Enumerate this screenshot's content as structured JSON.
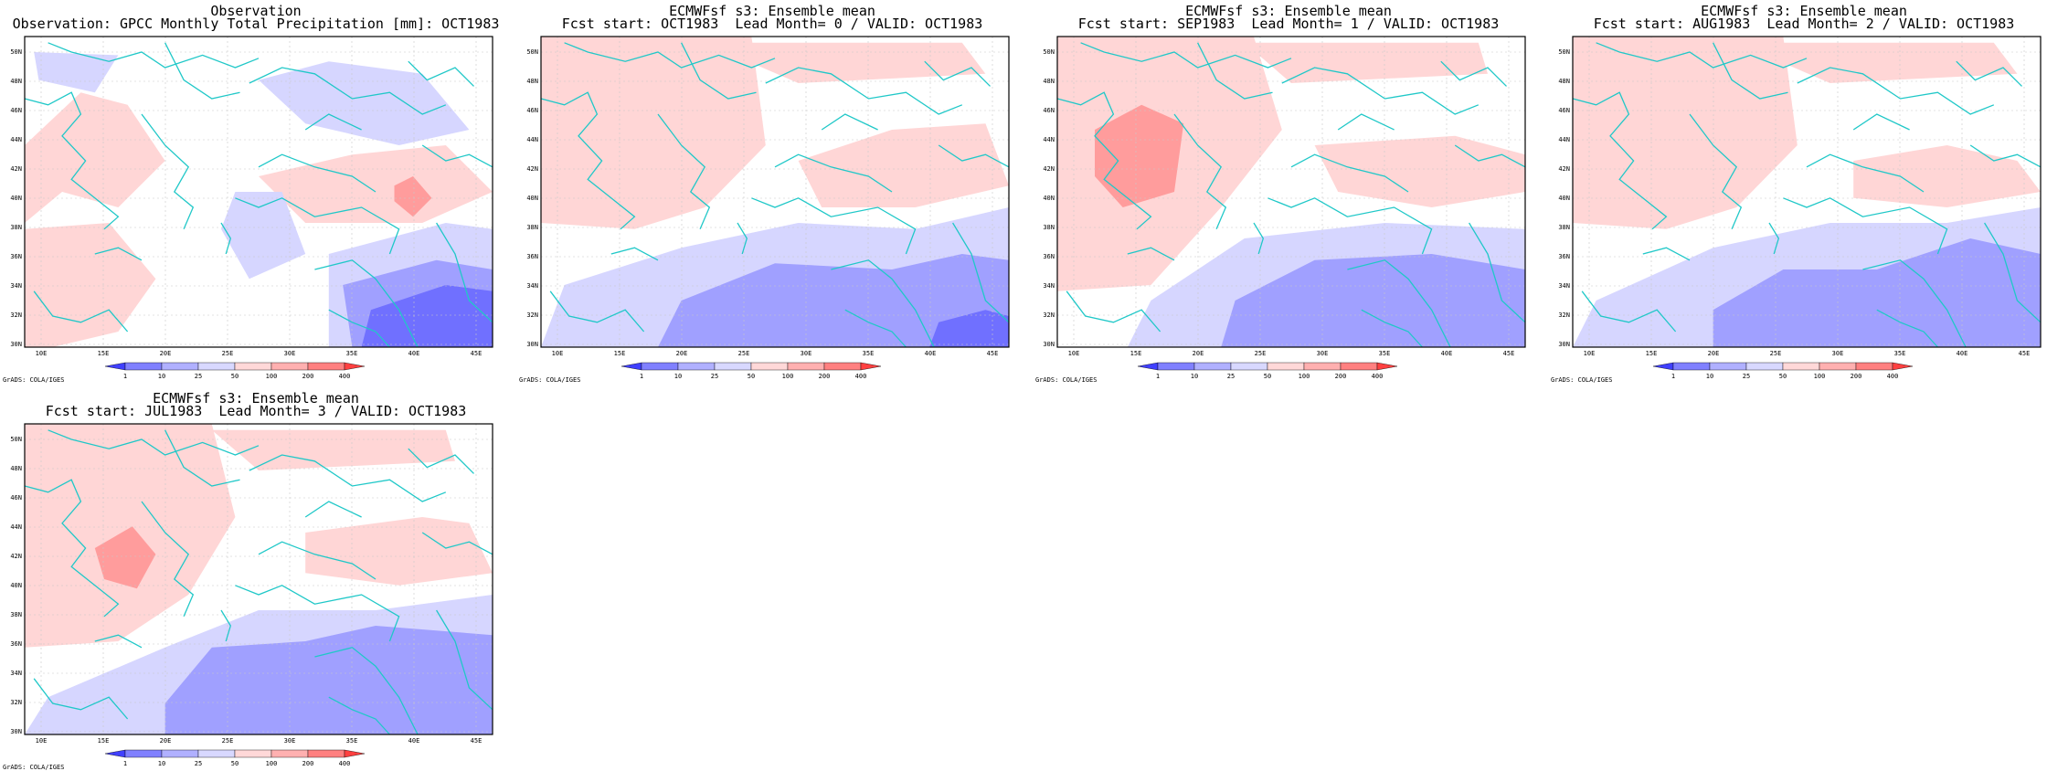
{
  "panels": [
    {
      "title1": "Observation",
      "title2": "Observation: GPCC Monthly Total Precipitation [mm]: OCT1983",
      "variant": "obs"
    },
    {
      "title1": "ECMWFsf s3: Ensemble mean",
      "title2": "Fcst start: OCT1983  Lead Month= 0 / VALID: OCT1983",
      "variant": "lead0"
    },
    {
      "title1": "ECMWFsf s3: Ensemble mean",
      "title2": "Fcst start: SEP1983  Lead Month= 1 / VALID: OCT1983",
      "variant": "lead1"
    },
    {
      "title1": "ECMWFsf s3: Ensemble mean",
      "title2": "Fcst start: AUG1983  Lead Month= 2 / VALID: OCT1983",
      "variant": "lead2"
    },
    {
      "title1": "ECMWFsf s3: Ensemble mean",
      "title2": "Fcst start: JUL1983  Lead Month= 3 / VALID: OCT1983",
      "variant": "lead3"
    }
  ],
  "map": {
    "lat_labels": [
      "30N",
      "32N",
      "34N",
      "36N",
      "38N",
      "40N",
      "42N",
      "44N",
      "46N",
      "48N",
      "50N"
    ],
    "lon_labels": [
      "10E",
      "15E",
      "20E",
      "25E",
      "30E",
      "35E",
      "40E",
      "45E"
    ],
    "coast_color": "#20c8c8"
  },
  "colorbar": {
    "levels": [
      "1",
      "10",
      "25",
      "50",
      "100",
      "200",
      "400"
    ],
    "colors": [
      "#4040ff",
      "#8080ff",
      "#b0b0ff",
      "#d8d8ff",
      "#ffd8d8",
      "#ffb0b0",
      "#ff8080",
      "#ff4040"
    ]
  },
  "footer": "GrADS: COLA/IGES"
}
